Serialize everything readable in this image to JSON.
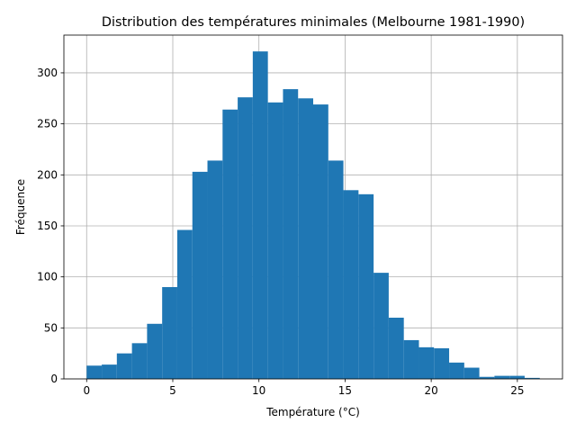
{
  "chart_data": {
    "type": "histogram",
    "title": "Distribution des températures minimales (Melbourne 1981-1990)",
    "xlabel": "Température (°C)",
    "ylabel": "Fréquence",
    "xlim": [
      -1.32,
      27.62
    ],
    "ylim": [
      0,
      337
    ],
    "xticks": [
      0,
      5,
      10,
      15,
      20,
      25
    ],
    "yticks": [
      0,
      50,
      100,
      150,
      200,
      250,
      300
    ],
    "grid": true,
    "bar_color": "#1f77b4",
    "bin_edges": [
      0,
      0.877,
      1.753,
      2.63,
      3.507,
      4.383,
      5.26,
      6.137,
      7.013,
      7.89,
      8.767,
      9.643,
      10.52,
      11.397,
      12.273,
      13.15,
      14.027,
      14.903,
      15.78,
      16.657,
      17.533,
      18.41,
      19.287,
      20.163,
      21.04,
      21.917,
      22.793,
      23.67,
      24.547,
      25.423,
      26.3
    ],
    "counts": [
      13,
      14,
      25,
      35,
      54,
      90,
      146,
      203,
      214,
      264,
      276,
      321,
      271,
      284,
      275,
      269,
      214,
      185,
      181,
      104,
      60,
      38,
      31,
      30,
      16,
      11,
      2,
      3,
      3,
      1
    ]
  }
}
